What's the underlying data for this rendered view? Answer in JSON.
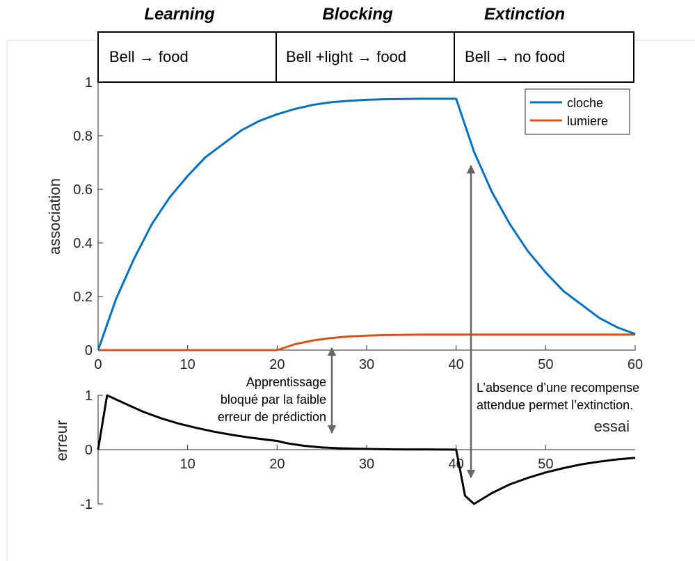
{
  "phases": [
    {
      "heading": "Learning",
      "box_label": "Bell → food"
    },
    {
      "heading": "Blocking",
      "box_label": "Bell +light → food"
    },
    {
      "heading": "Extinction",
      "box_label": "Bell → no food"
    }
  ],
  "annotations": {
    "blocking": [
      "Apprentissage",
      "bloqué par la faible",
      "erreur de prédiction"
    ],
    "extinction": [
      "L’absence d’une recompense",
      "attendue permet l’extinction."
    ]
  },
  "colors": {
    "cloche": "#0072bd",
    "lumiere": "#d95319",
    "erreur": "#000000",
    "annotation_arrow": "#666666"
  },
  "chart_data": [
    {
      "type": "line",
      "ylabel": "association",
      "xlim": [
        0,
        60
      ],
      "ylim": [
        0,
        1
      ],
      "xticks": [
        "0",
        "10",
        "20",
        "30",
        "40",
        "50",
        "60"
      ],
      "yticks": [
        "0",
        "0.2",
        "0.4",
        "0.6",
        "0.8",
        "1"
      ],
      "legend_position": "top-right",
      "series": [
        {
          "name": "cloche",
          "x": [
            0,
            2,
            4,
            6,
            8,
            10,
            12,
            14,
            16,
            18,
            20,
            22,
            24,
            26,
            28,
            30,
            32,
            34,
            36,
            38,
            40,
            42,
            44,
            46,
            48,
            50,
            52,
            54,
            56,
            58,
            60
          ],
          "values": [
            0,
            0.19,
            0.34,
            0.47,
            0.57,
            0.65,
            0.72,
            0.77,
            0.82,
            0.855,
            0.88,
            0.9,
            0.915,
            0.925,
            0.93,
            0.934,
            0.936,
            0.937,
            0.938,
            0.938,
            0.938,
            0.74,
            0.59,
            0.47,
            0.37,
            0.29,
            0.22,
            0.17,
            0.12,
            0.085,
            0.06
          ]
        },
        {
          "name": "lumiere",
          "x": [
            0,
            20,
            22,
            24,
            26,
            28,
            30,
            32,
            34,
            36,
            38,
            40,
            60
          ],
          "values": [
            0,
            0,
            0.022,
            0.036,
            0.045,
            0.051,
            0.054,
            0.056,
            0.057,
            0.058,
            0.058,
            0.058,
            0.058
          ]
        }
      ]
    },
    {
      "type": "line",
      "ylabel": "erreur",
      "xlabel": "essai",
      "xlim": [
        0,
        60
      ],
      "ylim": [
        -1,
        1
      ],
      "xticks": [
        "10",
        "20",
        "30",
        "40",
        "50"
      ],
      "yticks": [
        "-1",
        "0",
        "1"
      ],
      "series": [
        {
          "x": [
            0,
            1,
            3,
            5,
            7,
            9,
            11,
            13,
            15,
            17,
            19,
            20,
            21,
            23,
            25,
            27,
            29,
            31,
            33,
            35,
            37,
            39,
            40,
            41,
            42,
            44,
            46,
            48,
            50,
            52,
            54,
            56,
            58,
            60
          ],
          "values": [
            0,
            1,
            0.85,
            0.7,
            0.58,
            0.48,
            0.4,
            0.33,
            0.27,
            0.22,
            0.18,
            0.16,
            0.12,
            0.07,
            0.04,
            0.025,
            0.015,
            0.01,
            0.005,
            0.003,
            0.002,
            0.001,
            0,
            -0.85,
            -1,
            -0.8,
            -0.64,
            -0.52,
            -0.42,
            -0.34,
            -0.27,
            -0.22,
            -0.18,
            -0.15
          ]
        }
      ]
    }
  ]
}
